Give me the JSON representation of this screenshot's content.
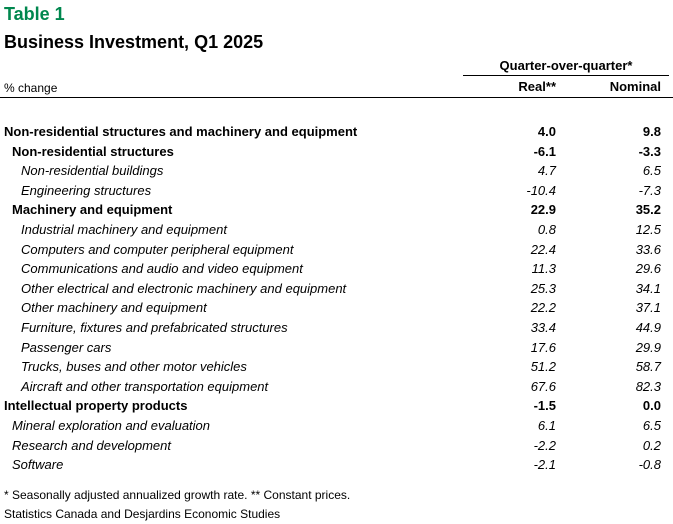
{
  "header": {
    "table_label": "Table 1",
    "title": "Business Investment, Q1 2025"
  },
  "columns": {
    "group": "Quarter-over-quarter*",
    "unit": "% change",
    "real": "Real**",
    "nominal": "Nominal"
  },
  "rows": [
    {
      "label": "Non-residential structures and machinery and equipment",
      "real": "4.0",
      "nominal": "9.8"
    },
    {
      "label": "Non-residential structures",
      "real": "-6.1",
      "nominal": "-3.3"
    },
    {
      "label": "Non-residential buildings",
      "real": "4.7",
      "nominal": "6.5"
    },
    {
      "label": "Engineering structures",
      "real": "-10.4",
      "nominal": "-7.3"
    },
    {
      "label": "Machinery and equipment",
      "real": "22.9",
      "nominal": "35.2"
    },
    {
      "label": "Industrial machinery and equipment",
      "real": "0.8",
      "nominal": "12.5"
    },
    {
      "label": "Computers and computer peripheral equipment",
      "real": "22.4",
      "nominal": "33.6"
    },
    {
      "label": "Communications and audio and video equipment",
      "real": "11.3",
      "nominal": "29.6"
    },
    {
      "label": "Other electrical and electronic machinery and equipment",
      "real": "25.3",
      "nominal": "34.1"
    },
    {
      "label": "Other machinery and equipment",
      "real": "22.2",
      "nominal": "37.1"
    },
    {
      "label": "Furniture, fixtures and prefabricated structures",
      "real": "33.4",
      "nominal": "44.9"
    },
    {
      "label": "Passenger cars",
      "real": "17.6",
      "nominal": "29.9"
    },
    {
      "label": "Trucks, buses and other motor vehicles",
      "real": "51.2",
      "nominal": "58.7"
    },
    {
      "label": "Aircraft and other transportation equipment",
      "real": "67.6",
      "nominal": "82.3"
    },
    {
      "label": "Intellectual property products",
      "real": "-1.5",
      "nominal": "0.0"
    },
    {
      "label": "Mineral exploration and evaluation",
      "real": "6.1",
      "nominal": "6.5"
    },
    {
      "label": "Research and development",
      "real": "-2.2",
      "nominal": "0.2"
    },
    {
      "label": "Software",
      "real": "-2.1",
      "nominal": "-0.8"
    }
  ],
  "footer": {
    "note": "* Seasonally adjusted annualized growth rate. ** Constant prices.",
    "source": "Statistics Canada and Desjardins Economic Studies"
  }
}
